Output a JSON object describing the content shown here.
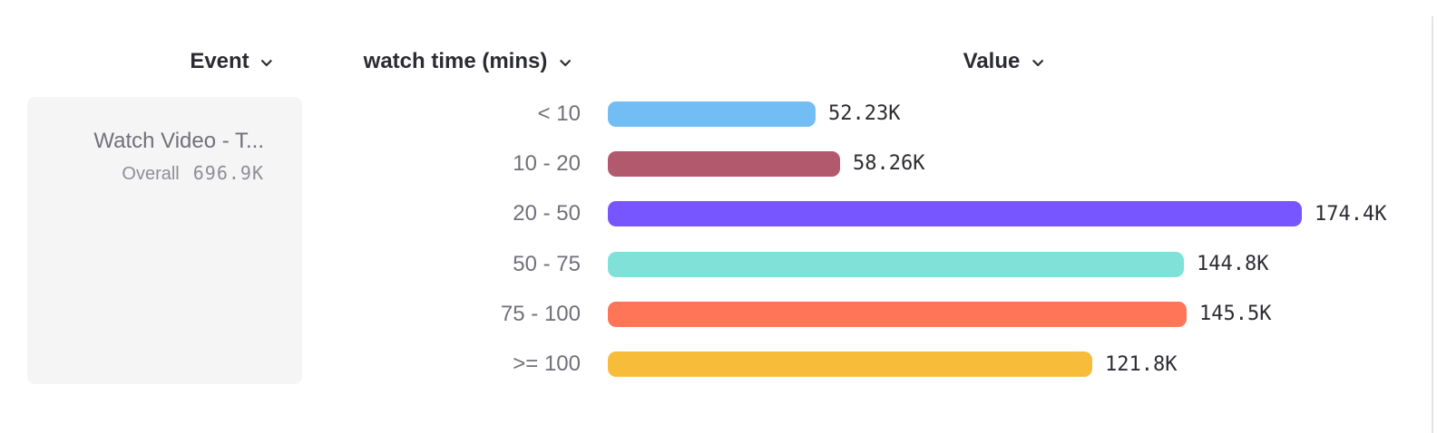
{
  "header": {
    "columns": [
      {
        "label": "Event"
      },
      {
        "label": "watch time (mins)"
      },
      {
        "label": "Value"
      }
    ]
  },
  "event_card": {
    "title": "Watch Video - T...",
    "overall_label": "Overall",
    "overall_value": "696.9K"
  },
  "chart_data": {
    "type": "bar",
    "orientation": "horizontal",
    "title": "",
    "xlabel": "Value",
    "ylabel": "watch time (mins)",
    "categories": [
      "< 10",
      "10 - 20",
      "20 - 50",
      "50 - 75",
      "75 - 100",
      ">= 100"
    ],
    "values": [
      52230,
      58260,
      174400,
      144800,
      145500,
      121800
    ],
    "value_labels": [
      "52.23K",
      "58.26K",
      "174.4K",
      "144.8K",
      "145.5K",
      "121.8K"
    ],
    "colors": [
      "#72BEF4",
      "#B2596E",
      "#7856FF",
      "#80E1D9",
      "#FF7557",
      "#F8BC3B"
    ],
    "max_value": 174400,
    "grid": false,
    "legend": false
  }
}
